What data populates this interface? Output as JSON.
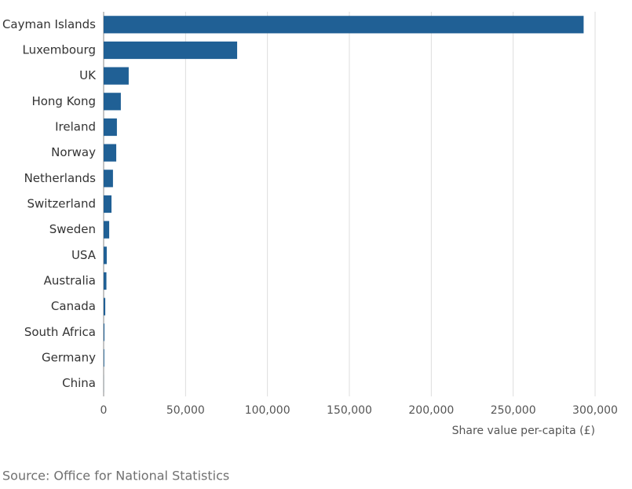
{
  "chart_data": {
    "type": "bar",
    "orientation": "horizontal",
    "categories": [
      "Cayman Islands",
      "Luxembourg",
      "UK",
      "Hong Kong",
      "Ireland",
      "Norway",
      "Netherlands",
      "Switzerland",
      "Sweden",
      "USA",
      "Australia",
      "Canada",
      "South Africa",
      "Germany",
      "China"
    ],
    "values": [
      293000,
      81500,
      15300,
      10500,
      8100,
      7700,
      5700,
      4800,
      3400,
      1900,
      1700,
      1000,
      500,
      400,
      50
    ],
    "color": "#206095",
    "xlim": [
      0,
      300000
    ],
    "xticks": [
      0,
      {
        "value": 50000,
        "label": "50,000"
      },
      {
        "value": 100000,
        "label": "100,000"
      },
      {
        "value": 150000,
        "label": "150,000"
      },
      {
        "value": 200000,
        "label": "200,000"
      },
      {
        "value": 250000,
        "label": "250,000"
      },
      {
        "value": 300000,
        "label": "300,000"
      }
    ],
    "xlabel": "Share value per-capita (£)",
    "grid": true,
    "source": "Source: Office for National Statistics"
  }
}
